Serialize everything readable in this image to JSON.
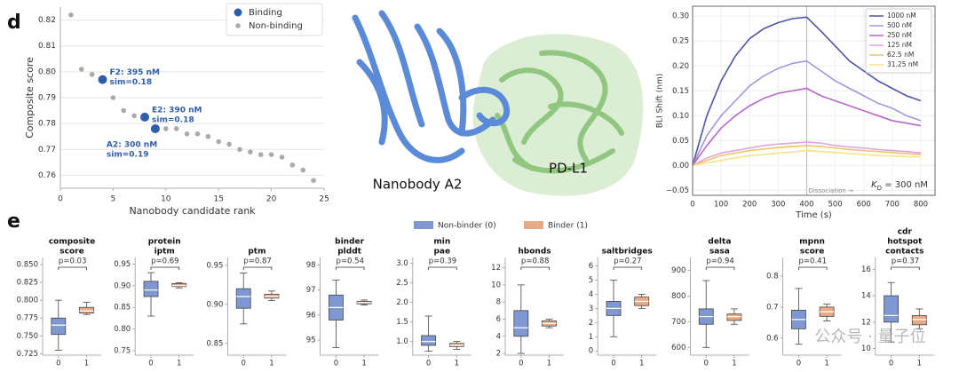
{
  "panel_labels": [
    "d",
    "e"
  ],
  "structure": {
    "labels": [
      "Nanobody A2",
      "PD-L1"
    ]
  },
  "box_legend": [
    {
      "name": "Non-binder (0)",
      "color": "#7f97d2"
    },
    {
      "name": "Binder (1)",
      "color": "#e8aa84"
    }
  ],
  "watermark": "公众号 · 量子位",
  "chart_data": [
    {
      "type": "scatter",
      "x_label": "Nanobody candidate rank",
      "y_label": "Composite score",
      "xlim": [
        0,
        25
      ],
      "ylim": [
        0.755,
        0.825
      ],
      "xticks": [
        0,
        5,
        10,
        15,
        20,
        25
      ],
      "yticks": [
        0.76,
        0.77,
        0.78,
        0.79,
        {
          "value": 0.8,
          "label": "0.80"
        },
        0.81,
        0.82
      ],
      "grid": true,
      "legend": "upper right",
      "series": [
        {
          "name": "Binding",
          "color": "#2f5ea8",
          "x": [
            4,
            8,
            9
          ],
          "y": [
            0.797,
            0.7825,
            0.778
          ],
          "annotations": [
            [
              "F2: 395 nM",
              "sim=0.18"
            ],
            [
              "E2: 390 nM",
              "sim=0.18"
            ],
            [
              "A2: 300 nM",
              "sim=0.19"
            ]
          ]
        },
        {
          "name": "Non-binding",
          "color": "#aaaaaa",
          "x": [
            1,
            2,
            3,
            5,
            6,
            7,
            10,
            11,
            12,
            13,
            14,
            15,
            16,
            17,
            18,
            19,
            20,
            21,
            22,
            23,
            24
          ],
          "y": [
            0.822,
            0.801,
            0.799,
            0.79,
            0.785,
            0.783,
            0.778,
            0.778,
            0.776,
            0.776,
            0.775,
            0.773,
            0.772,
            0.77,
            0.769,
            0.768,
            0.768,
            0.767,
            0.764,
            0.762,
            0.758
          ]
        }
      ]
    },
    {
      "type": "line",
      "x_label": "Time (s)",
      "y_label": "BLI Shift (nm)",
      "xlim": [
        0,
        850
      ],
      "ylim": [
        -0.06,
        0.32
      ],
      "xticks": [
        0,
        100,
        200,
        300,
        400,
        500,
        600,
        700,
        800
      ],
      "yticks": [
        {
          "value": -0.05,
          "label": "−0.05"
        },
        {
          "value": 0,
          "label": "0.00"
        },
        0.05,
        {
          "value": 0.1,
          "label": "0.10"
        },
        0.15,
        {
          "value": 0.2,
          "label": "0.20"
        },
        0.25,
        {
          "value": 0.3,
          "label": "0.30"
        }
      ],
      "grid": true,
      "legend": "upper right",
      "dissociation_start": 400,
      "dissociation_label": "Dissociation →",
      "kd_label": {
        "symbol": "K",
        "subscript": "D",
        "text": " = 300 nM"
      },
      "x": [
        0,
        50,
        100,
        150,
        200,
        250,
        300,
        350,
        400,
        450,
        500,
        550,
        600,
        650,
        700,
        750,
        800
      ],
      "series": [
        {
          "name": "1000 nM",
          "color": "#4b55a6",
          "values": [
            0,
            0.1,
            0.17,
            0.22,
            0.255,
            0.275,
            0.287,
            0.295,
            0.298,
            0.27,
            0.24,
            0.21,
            0.19,
            0.17,
            0.155,
            0.14,
            0.13
          ]
        },
        {
          "name": "500 nM",
          "color": "#a596de",
          "values": [
            0,
            0.06,
            0.1,
            0.13,
            0.16,
            0.18,
            0.195,
            0.205,
            0.21,
            0.19,
            0.17,
            0.155,
            0.14,
            0.125,
            0.115,
            0.1,
            0.09
          ]
        },
        {
          "name": "250 nM",
          "color": "#b868c6",
          "values": [
            0,
            0.04,
            0.075,
            0.1,
            0.12,
            0.135,
            0.145,
            0.15,
            0.155,
            0.14,
            0.13,
            0.12,
            0.11,
            0.1,
            0.09,
            0.085,
            0.08
          ]
        },
        {
          "name": "125 nM",
          "color": "#dfa4da",
          "values": [
            0,
            0.015,
            0.025,
            0.03,
            0.035,
            0.04,
            0.043,
            0.045,
            0.047,
            0.045,
            0.04,
            0.037,
            0.035,
            0.032,
            0.03,
            0.028,
            0.025
          ]
        },
        {
          "name": "62.5 nM",
          "color": "#f0c46a",
          "values": [
            0,
            0.01,
            0.02,
            0.025,
            0.03,
            0.033,
            0.036,
            0.038,
            0.04,
            0.038,
            0.035,
            0.032,
            0.03,
            0.028,
            0.026,
            0.024,
            0.022
          ]
        },
        {
          "name": "31.25 nM",
          "color": "#f5e48c",
          "values": [
            0,
            0.005,
            0.01,
            0.015,
            0.02,
            0.022,
            0.025,
            0.027,
            0.03,
            0.028,
            0.026,
            0.024,
            0.022,
            0.02,
            0.019,
            0.018,
            0.017
          ]
        }
      ]
    },
    {
      "type": "box",
      "title": [
        "composite",
        "score"
      ],
      "p_value": "p=0.03",
      "categories": [
        "0",
        "1"
      ],
      "ylim": [
        0.723,
        0.86
      ],
      "yticks": [
        0.725,
        {
          "value": 0.75,
          "label": "0.750"
        },
        0.775,
        {
          "value": 0.8,
          "label": "0.800"
        },
        0.825,
        {
          "value": 0.85,
          "label": "0.850"
        }
      ],
      "boxes": [
        {
          "low": 0.73,
          "q1": 0.752,
          "median": 0.765,
          "q3": 0.775,
          "high": 0.8
        },
        {
          "low": 0.78,
          "q1": 0.782,
          "median": 0.785,
          "q3": 0.79,
          "high": 0.797
        }
      ]
    },
    {
      "type": "box",
      "title": [
        "protein",
        "iptm"
      ],
      "p_value": "p=0.69",
      "categories": [
        "0",
        "1"
      ],
      "ylim": [
        0.74,
        0.965
      ],
      "yticks": [
        0.75,
        {
          "value": 0.8,
          "label": "0.80"
        },
        0.85,
        {
          "value": 0.9,
          "label": "0.90"
        },
        0.95
      ],
      "boxes": [
        {
          "low": 0.83,
          "q1": 0.875,
          "median": 0.89,
          "q3": 0.91,
          "high": 0.93
        },
        {
          "low": 0.895,
          "q1": 0.898,
          "median": 0.9,
          "q3": 0.905,
          "high": 0.907
        }
      ]
    },
    {
      "type": "box",
      "title": [
        "ptm"
      ],
      "p_value": "p=0.87",
      "categories": [
        "0",
        "1"
      ],
      "ylim": [
        0.835,
        0.96
      ],
      "yticks": [
        0.85,
        {
          "value": 0.9,
          "label": "0.90"
        },
        0.95
      ],
      "boxes": [
        {
          "low": 0.875,
          "q1": 0.895,
          "median": 0.91,
          "q3": 0.92,
          "high": 0.94
        },
        {
          "low": 0.905,
          "q1": 0.908,
          "median": 0.91,
          "q3": 0.913,
          "high": 0.917
        }
      ]
    },
    {
      "type": "box",
      "title": [
        "binder",
        "plddt"
      ],
      "p_value": "p=0.54",
      "categories": [
        "0",
        "1"
      ],
      "ylim": [
        94.4,
        98.3
      ],
      "yticks": [
        95,
        96,
        97,
        98
      ],
      "boxes": [
        {
          "low": 94.7,
          "q1": 95.8,
          "median": 96.3,
          "q3": 96.8,
          "high": 97.4
        },
        {
          "low": 96.4,
          "q1": 96.45,
          "median": 96.5,
          "q3": 96.55,
          "high": 96.6
        }
      ]
    },
    {
      "type": "box",
      "title": [
        "min",
        "pae"
      ],
      "p_value": "p=0.39",
      "categories": [
        "0",
        "1"
      ],
      "ylim": [
        0.65,
        3.15
      ],
      "yticks": [
        {
          "value": 1,
          "label": "1.0"
        },
        1.5,
        {
          "value": 2,
          "label": "2.0"
        },
        2.5,
        {
          "value": 3,
          "label": "3.0"
        }
      ],
      "boxes": [
        {
          "low": 0.75,
          "q1": 0.9,
          "median": 1.0,
          "q3": 1.15,
          "high": 1.65
        },
        {
          "low": 0.8,
          "q1": 0.87,
          "median": 0.9,
          "q3": 0.95,
          "high": 1.0
        }
      ]
    },
    {
      "type": "box",
      "title": [
        "hbonds"
      ],
      "p_value": "p=0.88",
      "categories": [
        "0",
        "1"
      ],
      "ylim": [
        1.8,
        13.2
      ],
      "yticks": [
        2,
        4,
        6,
        8,
        10,
        12
      ],
      "boxes": [
        {
          "low": 2,
          "q1": 4,
          "median": 5,
          "q3": 7,
          "high": 10
        },
        {
          "low": 5,
          "q1": 5.2,
          "median": 5.5,
          "q3": 5.8,
          "high": 6
        }
      ]
    },
    {
      "type": "box",
      "title": [
        "saltbridges"
      ],
      "p_value": "p=0.27",
      "categories": [
        "0",
        "1"
      ],
      "ylim": [
        -0.3,
        6.6
      ],
      "yticks": [
        0,
        1,
        2,
        3,
        4,
        5,
        6
      ],
      "boxes": [
        {
          "low": 1,
          "q1": 2.5,
          "median": 3,
          "q3": 3.5,
          "high": 5
        },
        {
          "low": 3,
          "q1": 3.2,
          "median": 3.5,
          "q3": 3.8,
          "high": 4
        }
      ]
    },
    {
      "type": "box",
      "title": [
        "delta",
        "sasa"
      ],
      "p_value": "p=0.94",
      "categories": [
        "0",
        "1"
      ],
      "ylim": [
        570,
        950
      ],
      "yticks": [
        600,
        700,
        800,
        900
      ],
      "boxes": [
        {
          "low": 600,
          "q1": 690,
          "median": 720,
          "q3": 750,
          "high": 860
        },
        {
          "low": 690,
          "q1": 705,
          "median": 720,
          "q3": 730,
          "high": 750
        }
      ]
    },
    {
      "type": "box",
      "title": [
        "mpnn",
        "score"
      ],
      "p_value": "p=0.41",
      "categories": [
        "0",
        "1"
      ],
      "ylim": [
        0.545,
        0.86
      ],
      "yticks": [
        0.6,
        0.7,
        0.8
      ],
      "boxes": [
        {
          "low": 0.58,
          "q1": 0.63,
          "median": 0.66,
          "q3": 0.69,
          "high": 0.76
        },
        {
          "low": 0.655,
          "q1": 0.67,
          "median": 0.685,
          "q3": 0.7,
          "high": 0.71
        }
      ]
    },
    {
      "type": "box",
      "title": [
        "cdr",
        "hotspot",
        "contacts"
      ],
      "p_value": "p=0.37",
      "categories": [
        "0",
        "1"
      ],
      "ylim": [
        9.5,
        16.9
      ],
      "yticks": [
        10,
        12,
        14,
        16
      ],
      "boxes": [
        {
          "low": 10.5,
          "q1": 12,
          "median": 12.5,
          "q3": 14,
          "high": 15
        },
        {
          "low": 11.5,
          "q1": 11.8,
          "median": 12.2,
          "q3": 12.5,
          "high": 13
        }
      ]
    }
  ]
}
